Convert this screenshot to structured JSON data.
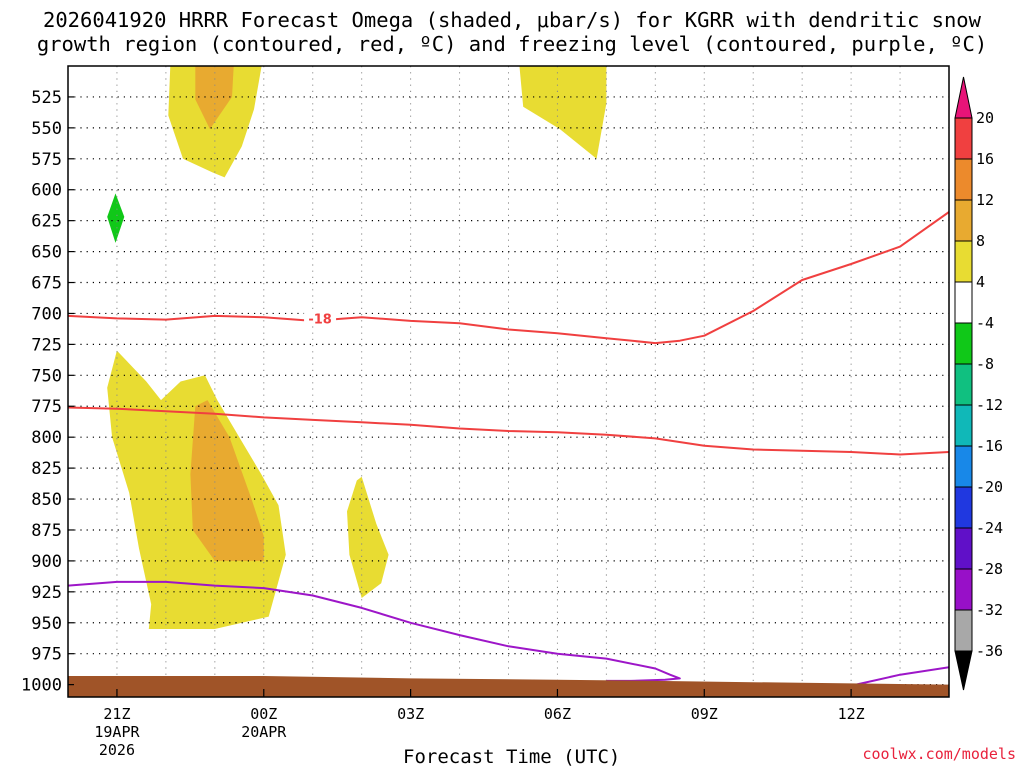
{
  "title_line1": "2026041920 HRRR Forecast Omega (shaded, μbar/s) for KGRR with dendritic snow",
  "title_line2": "growth region (contoured, red, ºC) and freezing level (contoured, purple, ºC)",
  "credit": "coolwx.com/models",
  "chart_data": {
    "type": "contour",
    "title": "2026041920 HRRR Forecast Omega (shaded, μbar/s) for KGRR with dendritic snow growth region (contoured, red, ºC) and freezing level (contoured, purple, ºC)",
    "xlabel": "Forecast Time (UTC)",
    "ylabel": "",
    "x_unit": "hours since 2026-04-19 18Z",
    "xlim": [
      0,
      18
    ],
    "ylim": [
      1010,
      500
    ],
    "y_ticks": [
      525,
      550,
      575,
      600,
      625,
      650,
      675,
      700,
      725,
      750,
      775,
      800,
      825,
      850,
      875,
      900,
      925,
      950,
      975,
      1000
    ],
    "x_ticks": [
      {
        "x": 1,
        "label": "21Z",
        "sub1": "19APR",
        "sub2": "2026"
      },
      {
        "x": 4,
        "label": "00Z",
        "sub1": "20APR",
        "sub2": ""
      },
      {
        "x": 7,
        "label": "03Z",
        "sub1": "",
        "sub2": ""
      },
      {
        "x": 10,
        "label": "06Z",
        "sub1": "",
        "sub2": ""
      },
      {
        "x": 13,
        "label": "09Z",
        "sub1": "",
        "sub2": ""
      },
      {
        "x": 16,
        "label": "12Z",
        "sub1": "",
        "sub2": ""
      }
    ],
    "grid": true,
    "colorbar": {
      "labels": [
        "20",
        "16",
        "12",
        "8",
        "4",
        "-4",
        "-8",
        "-12",
        "-16",
        "-20",
        "-24",
        "-28",
        "-32",
        "-36"
      ],
      "segments": [
        {
          "min": 16,
          "max": 20,
          "color": "#f04040"
        },
        {
          "min": 12,
          "max": 16,
          "color": "#ec8a2c"
        },
        {
          "min": 8,
          "max": 12,
          "color": "#e8aa30"
        },
        {
          "min": 4,
          "max": 8,
          "color": "#e8dc32"
        },
        {
          "min": -4,
          "max": 4,
          "color": "#ffffff"
        },
        {
          "min": -8,
          "max": -4,
          "color": "#10c818"
        },
        {
          "min": -12,
          "max": -8,
          "color": "#10c080"
        },
        {
          "min": -16,
          "max": -12,
          "color": "#10b8b8"
        },
        {
          "min": -20,
          "max": -16,
          "color": "#1888e8"
        },
        {
          "min": -24,
          "max": -20,
          "color": "#2038e0"
        },
        {
          "min": -28,
          "max": -24,
          "color": "#6010c8"
        },
        {
          "min": -32,
          "max": -28,
          "color": "#9810c8"
        },
        {
          "min": -36,
          "max": -32,
          "color": "#a8a8a8"
        }
      ],
      "over_color": "#e81478",
      "under_color": "#000000"
    },
    "shaded_regions": [
      {
        "level": "4 to 8",
        "color": "#e8dc32",
        "points": [
          [
            2.1,
            490
          ],
          [
            4.0,
            490
          ],
          [
            3.8,
            535
          ],
          [
            3.55,
            565
          ],
          [
            3.2,
            590
          ],
          [
            2.95,
            586
          ],
          [
            2.35,
            575
          ],
          [
            2.05,
            540
          ]
        ]
      },
      {
        "level": "8 to 12",
        "color": "#e8aa30",
        "points": [
          [
            2.6,
            490
          ],
          [
            3.4,
            490
          ],
          [
            3.35,
            525
          ],
          [
            2.9,
            551
          ],
          [
            2.6,
            527
          ]
        ]
      },
      {
        "level": "4 to 8",
        "color": "#e8dc32",
        "points": [
          [
            9.2,
            490
          ],
          [
            11.0,
            490
          ],
          [
            11.0,
            530
          ],
          [
            10.8,
            575
          ],
          [
            10.05,
            551
          ],
          [
            9.3,
            533
          ]
        ]
      },
      {
        "level": "4 to 8",
        "color": "#e8dc32",
        "points": [
          [
            0.8,
            760
          ],
          [
            1.0,
            730
          ],
          [
            1.6,
            755
          ],
          [
            1.9,
            770
          ],
          [
            2.3,
            755
          ],
          [
            2.8,
            750
          ],
          [
            3.05,
            770
          ],
          [
            3.5,
            800
          ],
          [
            3.95,
            830
          ],
          [
            4.3,
            855
          ],
          [
            4.45,
            895
          ],
          [
            4.1,
            945
          ],
          [
            3.0,
            955
          ],
          [
            1.65,
            955
          ],
          [
            1.7,
            935
          ],
          [
            1.45,
            890
          ],
          [
            1.25,
            845
          ],
          [
            0.9,
            800
          ]
        ]
      },
      {
        "level": "8 to 12",
        "color": "#e8aa30",
        "points": [
          [
            2.6,
            775
          ],
          [
            2.85,
            770
          ],
          [
            3.3,
            800
          ],
          [
            3.75,
            850
          ],
          [
            4.0,
            880
          ],
          [
            4.0,
            900
          ],
          [
            3.0,
            900
          ],
          [
            2.55,
            875
          ],
          [
            2.5,
            830
          ]
        ]
      },
      {
        "level": "4 to 8",
        "color": "#e8dc32",
        "points": [
          [
            5.9,
            835
          ],
          [
            6.0,
            832
          ],
          [
            6.3,
            870
          ],
          [
            6.55,
            895
          ],
          [
            6.4,
            918
          ],
          [
            6.0,
            930
          ],
          [
            5.75,
            895
          ],
          [
            5.7,
            860
          ]
        ]
      },
      {
        "level": "-4 to -8",
        "color": "#10c818",
        "points": [
          [
            0.8,
            622
          ],
          [
            0.97,
            603
          ],
          [
            1.15,
            622
          ],
          [
            0.97,
            643
          ]
        ]
      }
    ],
    "series": [
      {
        "kind": "dendritic growth isotherm",
        "level": -18,
        "label": "-18",
        "color": "#f04040",
        "x": [
          0,
          1,
          2,
          3,
          4,
          5,
          6,
          7,
          8,
          9,
          10,
          11,
          12,
          12.5,
          13,
          14,
          15,
          16,
          17,
          18
        ],
        "y": [
          702,
          704,
          705,
          702,
          703,
          706,
          703,
          706,
          708,
          713,
          716,
          720,
          724,
          722,
          718,
          698,
          673,
          660,
          646,
          618
        ]
      },
      {
        "kind": "dendritic growth isotherm",
        "level": -12,
        "label": "",
        "color": "#f04040",
        "x": [
          0,
          1,
          2,
          3,
          4,
          5,
          6,
          7,
          8,
          9,
          10,
          11,
          12,
          13,
          14,
          15,
          16,
          17,
          18
        ],
        "y": [
          776,
          777,
          779,
          781,
          784,
          786,
          788,
          790,
          793,
          795,
          796,
          798,
          801,
          807,
          810,
          811,
          812,
          814,
          812
        ]
      },
      {
        "kind": "freezing level",
        "level": 0,
        "label": "",
        "color": "#9d16c8",
        "x": [
          0,
          1,
          2,
          3,
          4,
          5,
          6,
          7,
          8,
          9,
          10,
          11,
          12,
          12.3,
          12.5,
          12.2,
          11.5,
          11.0
        ],
        "y": [
          920,
          917,
          917,
          920,
          922,
          928,
          938,
          950,
          960,
          969,
          975,
          979,
          987,
          992,
          995,
          996,
          997,
          997
        ]
      },
      {
        "kind": "freezing level",
        "level": 0,
        "label": "",
        "color": "#9d16c8",
        "x": [
          16.1,
          17.0,
          18.0
        ],
        "y": [
          1000,
          992,
          986
        ]
      }
    ],
    "terrain": {
      "color": "#a05428",
      "x": [
        0,
        4,
        7,
        10,
        12,
        14,
        16,
        18
      ],
      "y": [
        993,
        993,
        995,
        996,
        997,
        998,
        999,
        1000
      ]
    }
  }
}
